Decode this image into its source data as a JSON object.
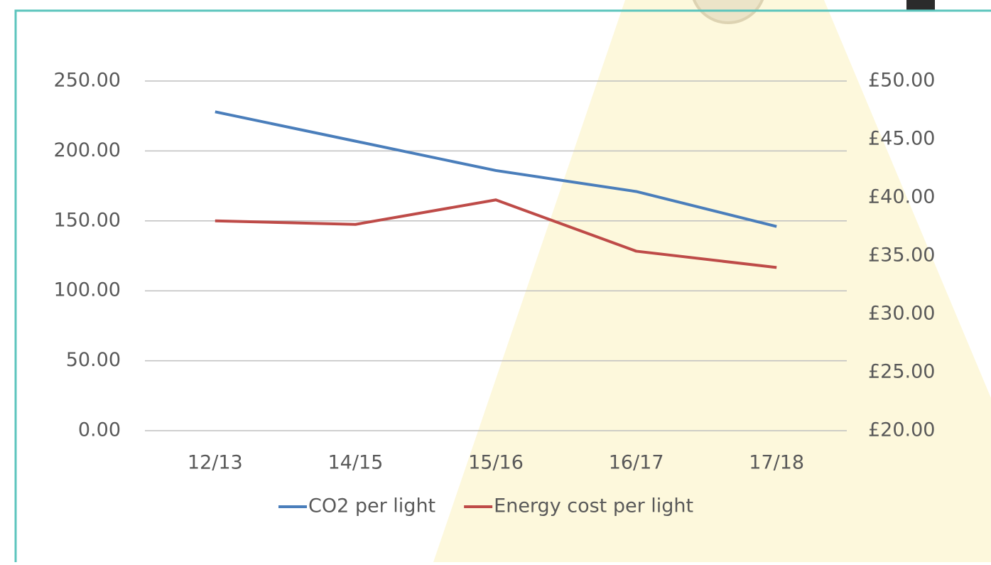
{
  "chart_data": {
    "type": "line",
    "categories": [
      "12/13",
      "14/15",
      "15/16",
      "16/17",
      "17/18"
    ],
    "series": [
      {
        "name": "CO2 per light",
        "color": "#4a7ebb",
        "values": [
          228,
          207,
          186,
          171,
          146
        ]
      },
      {
        "name": "Energy cost per light",
        "color": "#be4b48",
        "axis": "y2",
        "values": [
          38.0,
          37.7,
          39.8,
          35.4,
          34.0
        ]
      }
    ],
    "ylim": [
      0,
      250
    ],
    "yticks": [
      {
        "value": 0,
        "label": "0.00"
      },
      {
        "value": 50,
        "label": "50.00"
      },
      {
        "value": 100,
        "label": "100.00"
      },
      {
        "value": 150,
        "label": "150.00"
      },
      {
        "value": 200,
        "label": "200.00"
      },
      {
        "value": 250,
        "label": "250.00"
      }
    ],
    "y2lim": [
      20,
      50
    ],
    "y2ticks": [
      {
        "value": 20,
        "label": "£20.00"
      },
      {
        "value": 25,
        "label": "£25.00"
      },
      {
        "value": 30,
        "label": "£30.00"
      },
      {
        "value": 35,
        "label": "£35.00"
      },
      {
        "value": 40,
        "label": "£40.00"
      },
      {
        "value": 45,
        "label": "£45.00"
      },
      {
        "value": 50,
        "label": "£50.00"
      }
    ],
    "grid": true,
    "legend": "bottom"
  }
}
